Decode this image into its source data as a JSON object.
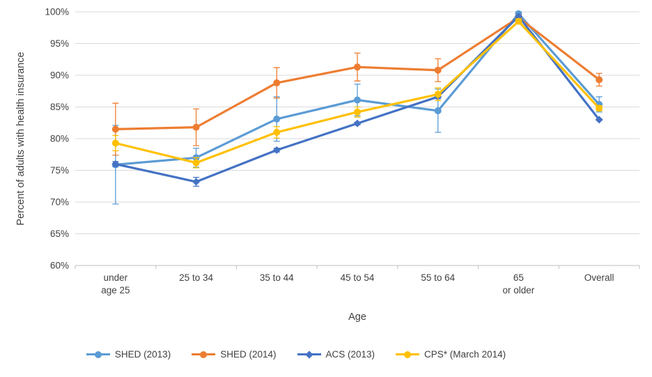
{
  "chart_data": {
    "type": "line",
    "title": "",
    "xlabel": "Age",
    "ylabel": "Percent of adults with health insurance",
    "ylim": [
      60,
      100
    ],
    "ytick_step": 5,
    "ytick_labels": [
      "60%",
      "65%",
      "70%",
      "75%",
      "80%",
      "85%",
      "90%",
      "95%",
      "100%"
    ],
    "categories": [
      "under age 25",
      "25 to 34",
      "35 to 44",
      "45 to 54",
      "55 to 64",
      "65 or older",
      "Overall"
    ],
    "category_display": [
      [
        "under",
        "age 25"
      ],
      [
        "25 to 34"
      ],
      [
        "35 to 44"
      ],
      [
        "45 to 54"
      ],
      [
        "55 to 64"
      ],
      [
        "65",
        "or older"
      ],
      [
        "Overall"
      ]
    ],
    "grid": true,
    "legend_position": "bottom",
    "colors": {
      "gridline": "#D9D9D9",
      "axis": "#BFBFBF",
      "text": "#404040"
    },
    "series": [
      {
        "name": "SHED (2013)",
        "color": "#5B9BD5",
        "marker": "circle",
        "values": [
          75.9,
          77.0,
          83.1,
          86.1,
          84.4,
          99.7,
          85.4
        ],
        "errors": [
          6.2,
          1.5,
          3.5,
          2.5,
          3.4,
          0.3,
          1.2
        ]
      },
      {
        "name": "SHED (2014)",
        "color": "#ED7D31",
        "marker": "circle",
        "values": [
          81.5,
          81.8,
          88.8,
          91.3,
          90.8,
          99.1,
          89.3
        ],
        "errors": [
          4.1,
          2.9,
          2.4,
          2.2,
          1.8,
          0.4,
          1.0
        ]
      },
      {
        "name": "ACS (2013)",
        "color": "#4472C4",
        "marker": "diamond",
        "values": [
          76.0,
          73.2,
          78.2,
          82.4,
          86.6,
          99.3,
          83.0
        ],
        "errors": [
          0.4,
          0.7,
          0.3,
          0.2,
          0.3,
          0.1,
          0.1
        ]
      },
      {
        "name": "CPS* (March 2014)",
        "color": "#FFC000",
        "marker": "circle",
        "values": [
          79.3,
          76.2,
          81.0,
          84.2,
          87.0,
          98.5,
          84.8
        ],
        "errors": [
          1.2,
          0.8,
          0.9,
          0.8,
          1.0,
          0.4,
          0.4
        ]
      }
    ]
  }
}
